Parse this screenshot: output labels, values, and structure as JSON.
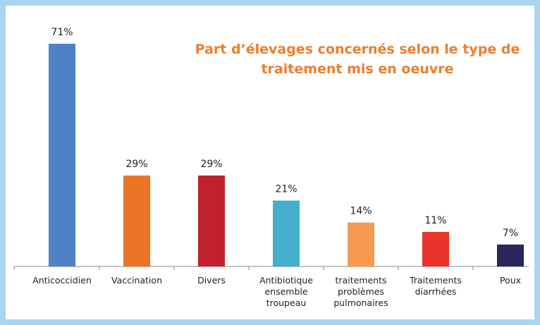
{
  "chart_data": {
    "type": "bar",
    "title": "Part d’élevages concernés selon le type de traitement mis en oeuvre",
    "categories": [
      "Anticoccidien",
      "Vaccination",
      "Divers",
      "Antibiotique ensemble troupeau",
      "traitements problèmes pulmonaires",
      "Traitements diarrhées",
      "Poux"
    ],
    "values": [
      71,
      29,
      29,
      21,
      14,
      11,
      7
    ],
    "value_labels": [
      "71%",
      "29%",
      "29%",
      "21%",
      "14%",
      "11%",
      "7%"
    ],
    "colors": [
      "#4f81c7",
      "#ec7426",
      "#c0212c",
      "#45aecb",
      "#f69a50",
      "#e8342b",
      "#27265e"
    ],
    "ylim": [
      0,
      80
    ]
  }
}
